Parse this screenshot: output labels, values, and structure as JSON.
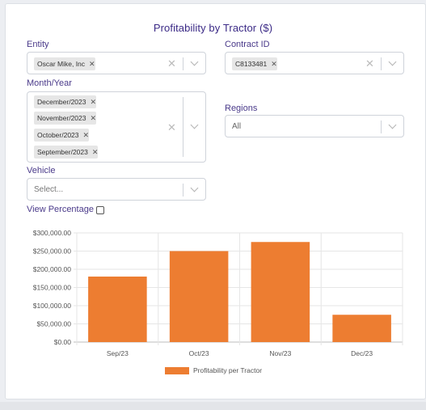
{
  "title": "Profitability by Tractor ($)",
  "filters": {
    "entity": {
      "label": "Entity",
      "chips": [
        "Oscar Mike, Inc"
      ]
    },
    "contract": {
      "label": "Contract ID",
      "chips": [
        "C8133481"
      ]
    },
    "month": {
      "label": "Month/Year",
      "chips": [
        "December/2023",
        "November/2023",
        "October/2023",
        "September/2023"
      ]
    },
    "regions": {
      "label": "Regions",
      "value": "All"
    },
    "vehicle": {
      "label": "Vehicle",
      "placeholder": "Select..."
    },
    "view_percentage": {
      "label": "View Percentage",
      "checked": false
    }
  },
  "chart_data": {
    "type": "bar",
    "categories": [
      "Sep/23",
      "Oct/23",
      "Nov/23",
      "Dec/23"
    ],
    "series": [
      {
        "name": "Profitability per Tractor",
        "values": [
          180000,
          250000,
          275000,
          75000
        ]
      }
    ],
    "ylim": [
      0,
      300000
    ],
    "yticks": [
      "$0.00",
      "$50,000.00",
      "$100,000.00",
      "$150,000.00",
      "$200,000.00",
      "$250,000.00",
      "$300,000.00"
    ],
    "grid": true,
    "legend": "bottom",
    "colors": {
      "bar": "#ed7d31"
    }
  }
}
